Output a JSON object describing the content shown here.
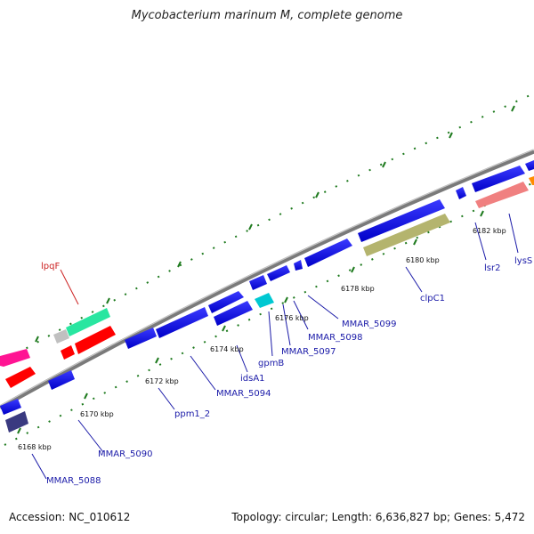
{
  "title": "Mycobacterium marinum M, complete genome",
  "footer": {
    "accession": "Accession: NC_010612",
    "summary": "Topology: circular; Length: 6,636,827 bp; Genes: 5,472"
  },
  "colors": {
    "backbone": "#8a8a8a",
    "tick": "#1e7a1e",
    "protein": "#1414e6",
    "label_protein": "#1a1aa8",
    "label_lipoprotein": "#cc2222"
  },
  "kbp_labels": [
    {
      "text": "6168 kbp"
    },
    {
      "text": "6170 kbp"
    },
    {
      "text": "6172 kbp"
    },
    {
      "text": "6174 kbp"
    },
    {
      "text": "6176 kbp"
    },
    {
      "text": "6178 kbp"
    },
    {
      "text": "6180 kbp"
    },
    {
      "text": "6182 kbp"
    }
  ],
  "gene_labels": [
    {
      "text": "lpqF",
      "kind": "lipoprotein"
    },
    {
      "text": "MMAR_5088",
      "kind": "protein"
    },
    {
      "text": "MMAR_5090",
      "kind": "protein"
    },
    {
      "text": "ppm1_2",
      "kind": "protein"
    },
    {
      "text": "MMAR_5094",
      "kind": "protein"
    },
    {
      "text": "idsA1",
      "kind": "protein"
    },
    {
      "text": "gpmB",
      "kind": "protein"
    },
    {
      "text": "MMAR_5097",
      "kind": "protein"
    },
    {
      "text": "MMAR_5098",
      "kind": "protein"
    },
    {
      "text": "MMAR_5099",
      "kind": "protein"
    },
    {
      "text": "clpC1",
      "kind": "protein"
    },
    {
      "text": "lsr2",
      "kind": "protein"
    },
    {
      "text": "lysS",
      "kind": "protein"
    }
  ]
}
